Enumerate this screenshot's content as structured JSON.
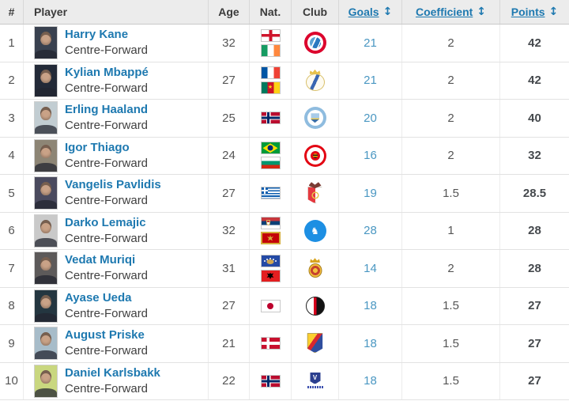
{
  "table": {
    "columns": {
      "rank": "#",
      "player": "Player",
      "age": "Age",
      "nat": "Nat.",
      "club": "Club",
      "goals": "Goals",
      "coefficient": "Coefficient",
      "points": "Points"
    },
    "sort_icon": "↕"
  },
  "colors": {
    "header_bg": "#ececec",
    "link_blue": "#1e79b0",
    "goals_link": "#4a97c2",
    "points_color": "#45494d",
    "muted_text": "#555555",
    "row_border": "#e2e2e2"
  },
  "rows": [
    {
      "rank": "1",
      "name": "Harry Kane",
      "position": "Centre-Forward",
      "age": "32",
      "flags": [
        "england",
        "ireland"
      ],
      "club": "bayern-munich",
      "goals": "21",
      "coefficient": "2",
      "points": "42",
      "photo_tone": "#39414f"
    },
    {
      "rank": "2",
      "name": "Kylian Mbappé",
      "position": "Centre-Forward",
      "age": "27",
      "flags": [
        "france",
        "cameroon"
      ],
      "club": "real-madrid",
      "goals": "21",
      "coefficient": "2",
      "points": "42",
      "photo_tone": "#232a38"
    },
    {
      "rank": "3",
      "name": "Erling Haaland",
      "position": "Centre-Forward",
      "age": "25",
      "flags": [
        "norway"
      ],
      "club": "manchester-city",
      "goals": "20",
      "coefficient": "2",
      "points": "40",
      "photo_tone": "#c2cdd2"
    },
    {
      "rank": "4",
      "name": "Igor Thiago",
      "position": "Centre-Forward",
      "age": "24",
      "flags": [
        "brazil",
        "bulgaria"
      ],
      "club": "brentford",
      "goals": "16",
      "coefficient": "2",
      "points": "32",
      "photo_tone": "#8d8575"
    },
    {
      "rank": "5",
      "name": "Vangelis Pavlidis",
      "position": "Centre-Forward",
      "age": "27",
      "flags": [
        "greece"
      ],
      "club": "benfica",
      "goals": "19",
      "coefficient": "1.5",
      "points": "28.5",
      "photo_tone": "#4a4a5e"
    },
    {
      "rank": "6",
      "name": "Darko Lemajic",
      "position": "Centre-Forward",
      "age": "32",
      "flags": [
        "serbia",
        "montenegro"
      ],
      "club": "rfs-riga",
      "goals": "28",
      "coefficient": "1",
      "points": "28",
      "photo_tone": "#c9c9c9"
    },
    {
      "rank": "7",
      "name": "Vedat Muriqi",
      "position": "Centre-Forward",
      "age": "31",
      "flags": [
        "kosovo",
        "albania"
      ],
      "club": "mallorca",
      "goals": "14",
      "coefficient": "2",
      "points": "28",
      "photo_tone": "#5d5a5a"
    },
    {
      "rank": "8",
      "name": "Ayase Ueda",
      "position": "Centre-Forward",
      "age": "27",
      "flags": [
        "japan"
      ],
      "club": "feyenoord",
      "goals": "18",
      "coefficient": "1.5",
      "points": "27",
      "photo_tone": "#243640"
    },
    {
      "rank": "9",
      "name": "August Priske",
      "position": "Centre-Forward",
      "age": "21",
      "flags": [
        "denmark"
      ],
      "club": "djurgarden",
      "goals": "18",
      "coefficient": "1.5",
      "points": "27",
      "photo_tone": "#a7bcc9"
    },
    {
      "rank": "10",
      "name": "Daniel Karlsbakk",
      "position": "Centre-Forward",
      "age": "22",
      "flags": [
        "norway"
      ],
      "club": "viking-fk",
      "goals": "18",
      "coefficient": "1.5",
      "points": "27",
      "photo_tone": "#c9d77f"
    }
  ]
}
